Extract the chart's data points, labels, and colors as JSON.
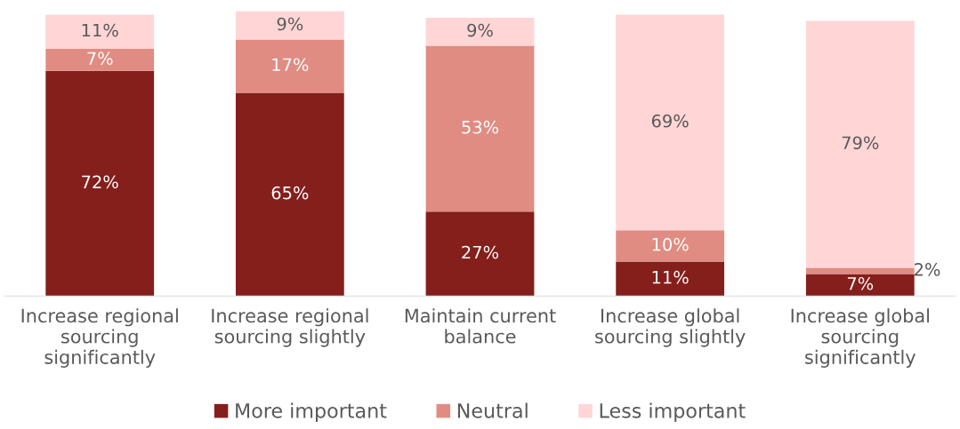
{
  "chart_data": {
    "type": "bar",
    "stacked": true,
    "legend": "bottom",
    "categories": [
      "Increase regional sourcing significantly",
      "Increase regional sourcing slightly",
      "Maintain current balance",
      "Increase global sourcing slightly",
      "Increase global sourcing significantly"
    ],
    "series": [
      {
        "name": "More important",
        "color": "#841f1c",
        "values": [
          72,
          65,
          27,
          11,
          7
        ],
        "value_labels": [
          "72%",
          "65%",
          "27%",
          "11%",
          "7%"
        ]
      },
      {
        "name": "Neutral",
        "color": "#e08c82",
        "values": [
          7,
          17,
          53,
          10,
          2
        ],
        "value_labels": [
          "7%",
          "17%",
          "53%",
          "10%",
          "2%"
        ]
      },
      {
        "name": "Less important",
        "color": "#ffd5d5",
        "values": [
          11,
          9,
          9,
          69,
          79
        ],
        "value_labels": [
          "11%",
          "9%",
          "9%",
          "69%",
          "79%"
        ]
      }
    ]
  }
}
